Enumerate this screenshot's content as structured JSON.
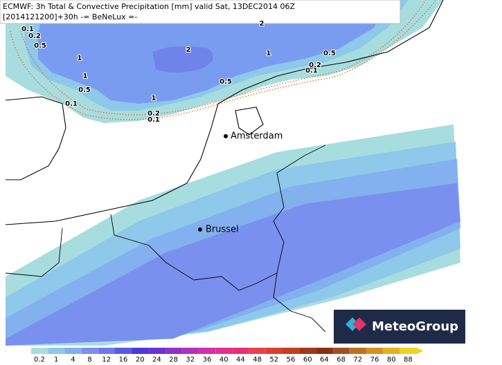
{
  "header": {
    "line1": "ECMWF: 3h Total & Convective Precipitation [mm] valid Sat, 13DEC2014 06Z",
    "line2": "[2014121200]+30h -= BeNeLux =-"
  },
  "cities": [
    {
      "name": "Amsterdam"
    },
    {
      "name": "Brussel"
    }
  ],
  "contour_labels": [
    "2",
    "0.1",
    "0.2",
    "0.5",
    "1",
    "2",
    "1",
    "0.5",
    "0.2",
    "0.1",
    "0.5",
    "1",
    "0.5",
    "0.1",
    "1",
    "0.2",
    "0.1"
  ],
  "logo": "MeteoGroup",
  "colorbar": {
    "labels": [
      0.2,
      1,
      4,
      8,
      12,
      16,
      20,
      24,
      28,
      32,
      36,
      40,
      44,
      48,
      52,
      56,
      60,
      64,
      68,
      72,
      76,
      80,
      88
    ]
  }
}
